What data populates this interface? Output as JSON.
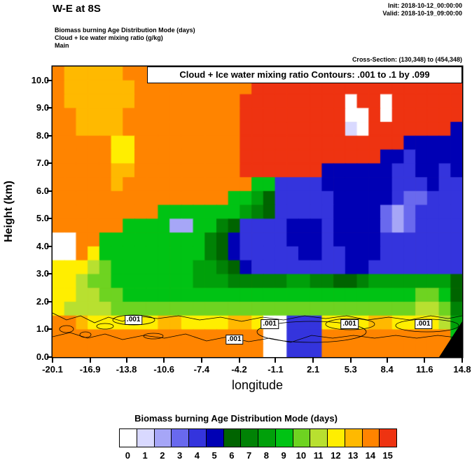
{
  "header": {
    "title": "W-E at 8S",
    "init_label": "Init: 2018-10-12_00:00:00",
    "valid_label": "Valid: 2018-10-19_09:00:00",
    "field_lines": [
      "Biomass burning Age Distribution Mode   (days)",
      "Cloud + Ice water mixing ratio   (g/kg)",
      "Main"
    ],
    "cross_section": "Cross-Section: (130,348) to (454,348)"
  },
  "chart_data": {
    "type": "heatmap",
    "title": "Biomass burning Age Distribution Mode (days), W-E cross section at 8S",
    "contour_box_text": "Cloud + Ice water mixing ratio Contours: .001 to .1 by .099",
    "xlabel": "longitude",
    "ylabel": "Height (km)",
    "legend_title": "Biomass burning Age Distribution Mode  (days)",
    "units": "days",
    "xlim": [
      -20.1,
      14.8
    ],
    "ylim": [
      0,
      10.5
    ],
    "x_ticks": [
      -20.1,
      -16.9,
      -13.8,
      -10.6,
      -7.4,
      -4.2,
      -1.1,
      2.1,
      5.3,
      8.4,
      11.6,
      14.8
    ],
    "x_tick_labels": [
      "-20.1",
      "-16.9",
      "-13.8",
      "-10.6",
      "-7.4",
      "-4.2",
      "-1.1",
      "2.1",
      "5.3",
      "8.4",
      "11.6",
      "14.8"
    ],
    "y_ticks": [
      0,
      1,
      2,
      3,
      4,
      5,
      6,
      7,
      8,
      9,
      10
    ],
    "y_tick_labels": [
      "0.0",
      "1.0",
      "2.0",
      "3.0",
      "4.0",
      "5.0",
      "6.0",
      "7.0",
      "8.0",
      "9.0",
      "10.0"
    ],
    "levels": [
      "0",
      "1",
      "2",
      "3",
      "4",
      "5",
      "6",
      "7",
      "8",
      "9",
      "10",
      "11",
      "12",
      "13",
      "14",
      "15"
    ],
    "colors": [
      "#ffffff",
      "#d9d9ff",
      "#a6a6f7",
      "#6969ee",
      "#3434dd",
      "#0000b4",
      "#006400",
      "#008205",
      "#00a00a",
      "#00c314",
      "#6ed321",
      "#b8e030",
      "#ffee00",
      "#ffb900",
      "#ff8400",
      "#ee3311"
    ],
    "contour_levels_note": ".001 to .1 by .099",
    "contour_labels": [
      {
        "text": ".001",
        "lon": -13.2,
        "km": 1.33
      },
      {
        "text": ".001",
        "lon": -4.6,
        "km": 0.62
      },
      {
        "text": ".001",
        "lon": -1.6,
        "km": 1.18
      },
      {
        "text": ".001",
        "lon": 5.2,
        "km": 1.18
      },
      {
        "text": ".001",
        "lon": 11.5,
        "km": 1.18
      }
    ],
    "grid": {
      "lon_min": -20.1,
      "lon_step": 1.0,
      "km_max": 10.5,
      "km_step": 0.5,
      "values": [
        [
          14,
          13,
          13,
          13,
          13,
          13,
          14,
          14,
          14,
          14,
          14,
          14,
          14,
          14,
          14,
          14,
          14,
          15,
          15,
          15,
          15,
          15,
          15,
          15,
          15,
          15,
          15,
          15,
          15,
          15,
          15,
          15,
          15,
          15,
          15
        ],
        [
          14,
          13,
          13,
          13,
          13,
          13,
          13,
          14,
          14,
          14,
          14,
          14,
          14,
          14,
          14,
          14,
          14,
          15,
          15,
          15,
          15,
          15,
          15,
          15,
          15,
          15,
          15,
          15,
          15,
          15,
          15,
          15,
          15,
          15,
          15
        ],
        [
          14,
          13,
          13,
          13,
          13,
          13,
          13,
          14,
          14,
          14,
          14,
          14,
          14,
          14,
          14,
          14,
          15,
          15,
          15,
          15,
          15,
          15,
          15,
          15,
          15,
          0,
          15,
          15,
          0,
          15,
          15,
          15,
          15,
          15,
          15
        ],
        [
          14,
          14,
          13,
          13,
          13,
          13,
          14,
          14,
          14,
          14,
          14,
          14,
          14,
          14,
          14,
          14,
          15,
          15,
          15,
          15,
          15,
          15,
          15,
          15,
          15,
          0,
          0,
          15,
          0,
          15,
          15,
          15,
          15,
          15,
          15
        ],
        [
          14,
          14,
          13,
          13,
          13,
          13,
          14,
          14,
          14,
          14,
          14,
          14,
          14,
          14,
          14,
          14,
          15,
          15,
          15,
          15,
          15,
          15,
          15,
          15,
          15,
          1,
          0,
          15,
          15,
          15,
          15,
          15,
          15,
          15,
          5
        ],
        [
          14,
          14,
          14,
          14,
          14,
          12,
          12,
          14,
          14,
          14,
          14,
          14,
          14,
          14,
          14,
          14,
          15,
          15,
          15,
          15,
          15,
          15,
          15,
          15,
          15,
          15,
          15,
          15,
          15,
          15,
          5,
          5,
          5,
          5,
          5
        ],
        [
          14,
          14,
          14,
          14,
          14,
          12,
          12,
          14,
          14,
          14,
          14,
          14,
          14,
          14,
          14,
          14,
          15,
          15,
          15,
          15,
          15,
          15,
          15,
          15,
          15,
          15,
          15,
          15,
          5,
          5,
          4,
          5,
          5,
          5,
          5
        ],
        [
          14,
          14,
          14,
          14,
          14,
          13,
          13,
          14,
          14,
          14,
          14,
          14,
          14,
          14,
          14,
          14,
          15,
          15,
          15,
          15,
          15,
          15,
          15,
          5,
          5,
          5,
          5,
          5,
          5,
          4,
          4,
          5,
          5,
          4,
          5
        ],
        [
          14,
          14,
          14,
          14,
          14,
          13,
          14,
          14,
          14,
          14,
          14,
          14,
          14,
          14,
          14,
          14,
          14,
          9,
          9,
          4,
          4,
          4,
          4,
          5,
          5,
          5,
          5,
          5,
          5,
          4,
          4,
          4,
          5,
          4,
          4
        ],
        [
          14,
          14,
          14,
          14,
          14,
          14,
          14,
          14,
          14,
          14,
          14,
          14,
          14,
          14,
          14,
          9,
          9,
          8,
          6,
          4,
          4,
          4,
          4,
          4,
          5,
          5,
          5,
          5,
          5,
          4,
          3,
          3,
          4,
          4,
          4
        ],
        [
          14,
          14,
          14,
          14,
          14,
          14,
          14,
          14,
          14,
          9,
          9,
          9,
          9,
          9,
          9,
          9,
          8,
          7,
          6,
          4,
          4,
          4,
          4,
          4,
          5,
          5,
          5,
          5,
          3,
          2,
          3,
          4,
          4,
          4,
          4
        ],
        [
          14,
          14,
          14,
          14,
          14,
          14,
          9,
          9,
          9,
          9,
          2,
          2,
          9,
          9,
          7,
          6,
          4,
          4,
          4,
          4,
          5,
          5,
          5,
          4,
          5,
          5,
          5,
          5,
          3,
          2,
          3,
          4,
          4,
          4,
          4
        ],
        [
          0,
          0,
          14,
          14,
          9,
          9,
          9,
          9,
          9,
          9,
          9,
          9,
          9,
          7,
          6,
          5,
          4,
          4,
          4,
          4,
          5,
          5,
          5,
          4,
          5,
          5,
          5,
          5,
          4,
          4,
          4,
          4,
          4,
          4,
          4
        ],
        [
          0,
          0,
          14,
          12,
          9,
          9,
          9,
          9,
          9,
          9,
          9,
          9,
          9,
          7,
          6,
          5,
          4,
          4,
          4,
          4,
          4,
          5,
          5,
          4,
          4,
          5,
          5,
          5,
          4,
          4,
          4,
          4,
          4,
          4,
          4
        ],
        [
          12,
          12,
          12,
          11,
          10,
          9,
          9,
          9,
          9,
          9,
          9,
          9,
          8,
          8,
          7,
          6,
          5,
          4,
          4,
          4,
          4,
          4,
          4,
          4,
          4,
          5,
          5,
          4,
          4,
          4,
          4,
          4,
          4,
          4,
          4
        ],
        [
          12,
          12,
          11,
          10,
          10,
          9,
          9,
          9,
          9,
          9,
          9,
          9,
          8,
          8,
          8,
          7,
          7,
          7,
          7,
          7,
          8,
          8,
          7,
          7,
          6,
          6,
          7,
          8,
          8,
          8,
          8,
          8,
          8,
          8,
          6
        ],
        [
          12,
          12,
          11,
          11,
          10,
          10,
          9,
          9,
          9,
          9,
          9,
          9,
          9,
          9,
          9,
          9,
          9,
          9,
          9,
          9,
          9,
          9,
          9,
          9,
          9,
          9,
          9,
          9,
          9,
          9,
          9,
          10,
          10,
          9,
          6
        ],
        [
          12,
          11,
          11,
          11,
          11,
          10,
          10,
          10,
          10,
          10,
          10,
          10,
          10,
          10,
          10,
          10,
          10,
          10,
          10,
          10,
          10,
          10,
          10,
          10,
          10,
          10,
          10,
          10,
          10,
          10,
          10,
          11,
          11,
          10,
          7
        ],
        [
          14,
          14,
          13,
          12,
          12,
          12,
          12,
          12,
          12,
          13,
          13,
          12,
          12,
          12,
          12,
          13,
          13,
          12,
          0,
          0,
          4,
          4,
          4,
          12,
          12,
          12,
          12,
          13,
          13,
          12,
          12,
          12,
          12,
          11,
          8
        ],
        [
          14,
          14,
          14,
          14,
          14,
          14,
          14,
          14,
          14,
          14,
          14,
          14,
          14,
          14,
          14,
          14,
          14,
          14,
          0,
          0,
          4,
          4,
          4,
          14,
          14,
          14,
          14,
          14,
          14,
          14,
          14,
          14,
          14,
          14,
          9
        ],
        [
          14,
          14,
          14,
          14,
          14,
          14,
          14,
          14,
          14,
          14,
          14,
          14,
          14,
          14,
          14,
          14,
          14,
          14,
          0,
          0,
          4,
          4,
          4,
          14,
          14,
          14,
          14,
          14,
          14,
          14,
          14,
          14,
          14,
          14,
          14
        ]
      ]
    }
  }
}
